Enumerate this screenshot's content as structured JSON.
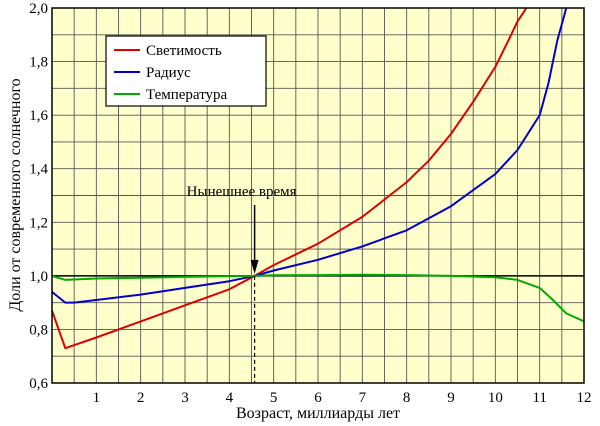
{
  "chart_data": {
    "type": "line",
    "xlabel": "Возраст, миллиарды лет",
    "ylabel": "Доли от современного солнечного",
    "xlim": [
      0,
      12
    ],
    "ylim": [
      0.6,
      2.0
    ],
    "x_ticks": [
      1,
      2,
      3,
      4,
      5,
      6,
      7,
      8,
      9,
      10,
      11,
      12
    ],
    "x_tick_labels": [
      "1",
      "2",
      "3",
      "4",
      "5",
      "6",
      "7",
      "8",
      "9",
      "10",
      "11",
      "12"
    ],
    "y_ticks": [
      0.6,
      0.8,
      1.0,
      1.2,
      1.4,
      1.6,
      1.8,
      2.0
    ],
    "y_tick_labels": [
      "0,6",
      "0,8",
      "1,0",
      "1,2",
      "1,4",
      "1,6",
      "1,8",
      "2,0"
    ],
    "grid": true,
    "x_minor_step": 0.5,
    "y_minor_step": 0.1,
    "background_color": "#ffffcc",
    "legend_position": "top-left",
    "reference_line": 1.0,
    "annotation": {
      "text": "Нынешнее время",
      "x": 4.57
    },
    "series": [
      {
        "name": "Светимость",
        "color": "#dd0000",
        "x": [
          0,
          0.3,
          1,
          2,
          3,
          4,
          4.57,
          5,
          6,
          7,
          8,
          8.5,
          9,
          9.5,
          10,
          10.3,
          10.5,
          10.7
        ],
        "y": [
          0.87,
          0.73,
          0.77,
          0.83,
          0.89,
          0.95,
          1.0,
          1.04,
          1.12,
          1.22,
          1.35,
          1.43,
          1.53,
          1.65,
          1.78,
          1.88,
          1.95,
          2.0
        ]
      },
      {
        "name": "Радиус",
        "color": "#0000cc",
        "x": [
          0,
          0.3,
          0.5,
          1,
          2,
          3,
          4,
          4.57,
          5,
          6,
          7,
          8,
          9,
          10,
          10.5,
          11,
          11.2,
          11.4,
          11.6
        ],
        "y": [
          0.94,
          0.9,
          0.9,
          0.91,
          0.93,
          0.955,
          0.98,
          1.0,
          1.02,
          1.06,
          1.11,
          1.17,
          1.26,
          1.38,
          1.47,
          1.6,
          1.72,
          1.88,
          2.0
        ]
      },
      {
        "name": "Температура",
        "color": "#00aa00",
        "x": [
          0,
          0.3,
          1,
          2,
          3,
          4,
          4.57,
          5,
          6,
          7,
          8,
          9,
          10,
          10.5,
          11,
          11.3,
          11.6,
          12
        ],
        "y": [
          1.0,
          0.985,
          0.99,
          0.993,
          0.996,
          0.999,
          1.0,
          1.002,
          1.003,
          1.004,
          1.003,
          1.0,
          0.995,
          0.985,
          0.955,
          0.91,
          0.86,
          0.83
        ]
      }
    ]
  }
}
